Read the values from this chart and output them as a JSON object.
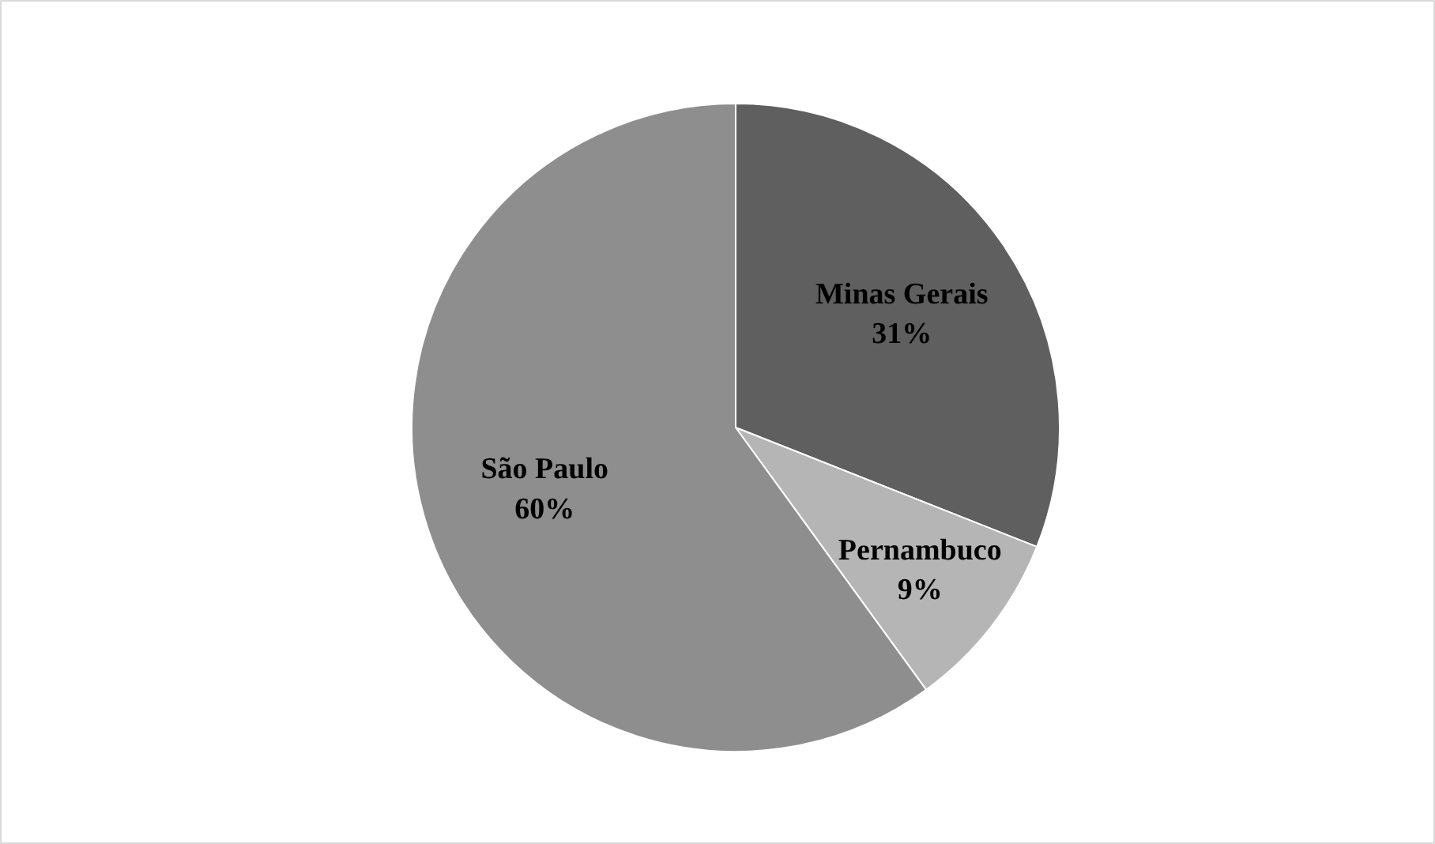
{
  "chart_data": {
    "type": "pie",
    "categories": [
      "Minas Gerais",
      "Pernambuco",
      "São Paulo"
    ],
    "values": [
      31,
      9,
      60
    ],
    "colors": [
      "#5f5f5f",
      "#b5b5b5",
      "#8e8e8e"
    ],
    "value_labels": [
      "31%",
      "9%",
      "60%"
    ]
  }
}
